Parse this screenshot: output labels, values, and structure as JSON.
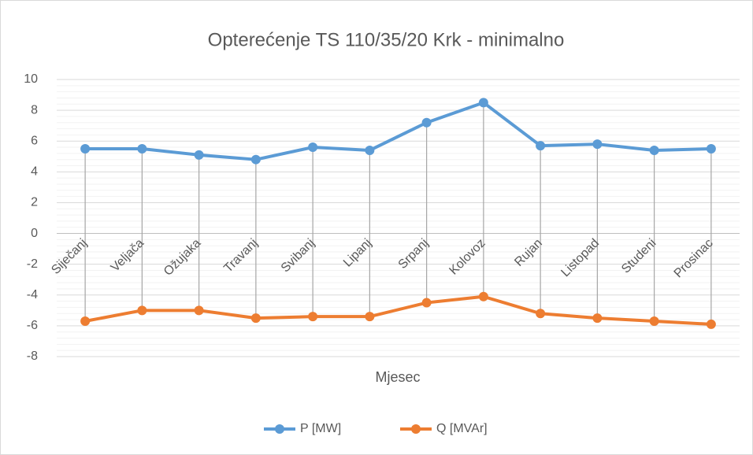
{
  "chart_data": {
    "type": "line",
    "title": "Opterećenje TS 110/35/20 Krk - minimalno",
    "x_label": "Mjesec",
    "categories": [
      "Siječanj",
      "Veljača",
      "Ožujaka",
      "Travanj",
      "Svibanj",
      "Lipanj",
      "Srpanj",
      "Kolovoz",
      "Rujan",
      "Listopad",
      "Studeni",
      "Prosinac"
    ],
    "series": [
      {
        "name": "P [MW]",
        "color": "#5b9bd5",
        "values": [
          5.5,
          5.5,
          5.1,
          4.8,
          5.6,
          5.4,
          7.2,
          8.5,
          5.7,
          5.8,
          5.4,
          5.5
        ]
      },
      {
        "name": "Q [MVAr]",
        "color": "#ed7d31",
        "values": [
          -5.7,
          -5.0,
          -5.0,
          -5.5,
          -5.4,
          -5.4,
          -4.5,
          -4.1,
          -5.2,
          -5.5,
          -5.7,
          -5.9
        ]
      }
    ],
    "ylim": [
      -8,
      10
    ],
    "yticks": [
      -8,
      -6,
      -4,
      -2,
      0,
      2,
      4,
      6,
      8,
      10
    ],
    "grid": true,
    "minor_grid": true,
    "drop_lines": true,
    "legend": "bottom"
  }
}
